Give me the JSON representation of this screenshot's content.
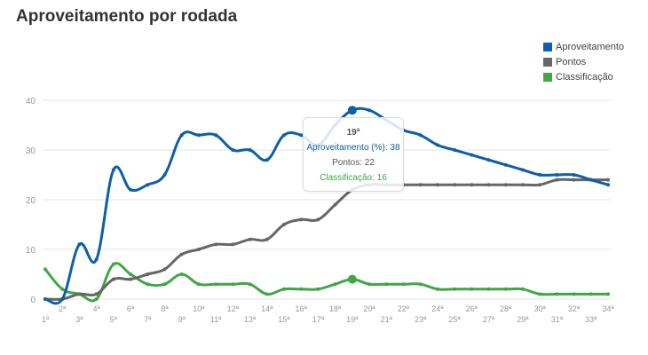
{
  "title": "Aproveitamento por rodada",
  "legend": [
    {
      "label": "Aproveitamento",
      "color": "#0c5fa8"
    },
    {
      "label": "Pontos",
      "color": "#666666"
    },
    {
      "label": "Classificação",
      "color": "#3fa744"
    }
  ],
  "tooltip": {
    "title": "19ª",
    "aproveitamento": "Aproveitamento (%): 38",
    "pontos": "Pontos: 22",
    "classificacao": "Classificação: 16"
  },
  "chart_data": {
    "type": "line",
    "title": "Aproveitamento por rodada",
    "xlabel": "",
    "ylabel": "",
    "ylim": [
      0,
      40
    ],
    "yticks": [
      0,
      10,
      20,
      30,
      40
    ],
    "grid": true,
    "legend_position": "top-right",
    "categories": [
      "1ª",
      "2ª",
      "3ª",
      "4ª",
      "5ª",
      "6ª",
      "7ª",
      "8ª",
      "9ª",
      "10ª",
      "11ª",
      "12ª",
      "13ª",
      "14ª",
      "15ª",
      "16ª",
      "17ª",
      "18ª",
      "19ª",
      "20ª",
      "21ª",
      "22ª",
      "23ª",
      "24ª",
      "25ª",
      "26ª",
      "27ª",
      "28ª",
      "29ª",
      "30ª",
      "31ª",
      "32ª",
      "33ª",
      "34ª"
    ],
    "series": [
      {
        "name": "Aproveitamento",
        "color": "#0c5fa8",
        "values": [
          0,
          0,
          11,
          8,
          26,
          22,
          23,
          25,
          33,
          33,
          33,
          30,
          30,
          28,
          33,
          33,
          31,
          35,
          38,
          38,
          36,
          34,
          33,
          31,
          30,
          29,
          28,
          27,
          26,
          25,
          25,
          25,
          24,
          23
        ]
      },
      {
        "name": "Pontos",
        "color": "#666666",
        "values": [
          0,
          0,
          1,
          1,
          4,
          4,
          5,
          6,
          9,
          10,
          11,
          11,
          12,
          12,
          15,
          16,
          16,
          19,
          22,
          23,
          23,
          23,
          23,
          23,
          23,
          23,
          23,
          23,
          23,
          23,
          24,
          24,
          24,
          24
        ]
      },
      {
        "name": "Classificação",
        "color": "#3fa744",
        "values": [
          6,
          2,
          1,
          0,
          7,
          5,
          3,
          3,
          5,
          3,
          3,
          3,
          3,
          1,
          2,
          2,
          2,
          3,
          4,
          3,
          3,
          3,
          3,
          2,
          2,
          2,
          2,
          2,
          2,
          1,
          1,
          1,
          1,
          1
        ]
      }
    ],
    "highlight": {
      "index": 18,
      "label": "19ª",
      "aproveitamento": 38,
      "pontos": 22,
      "classificacao": 16
    }
  }
}
